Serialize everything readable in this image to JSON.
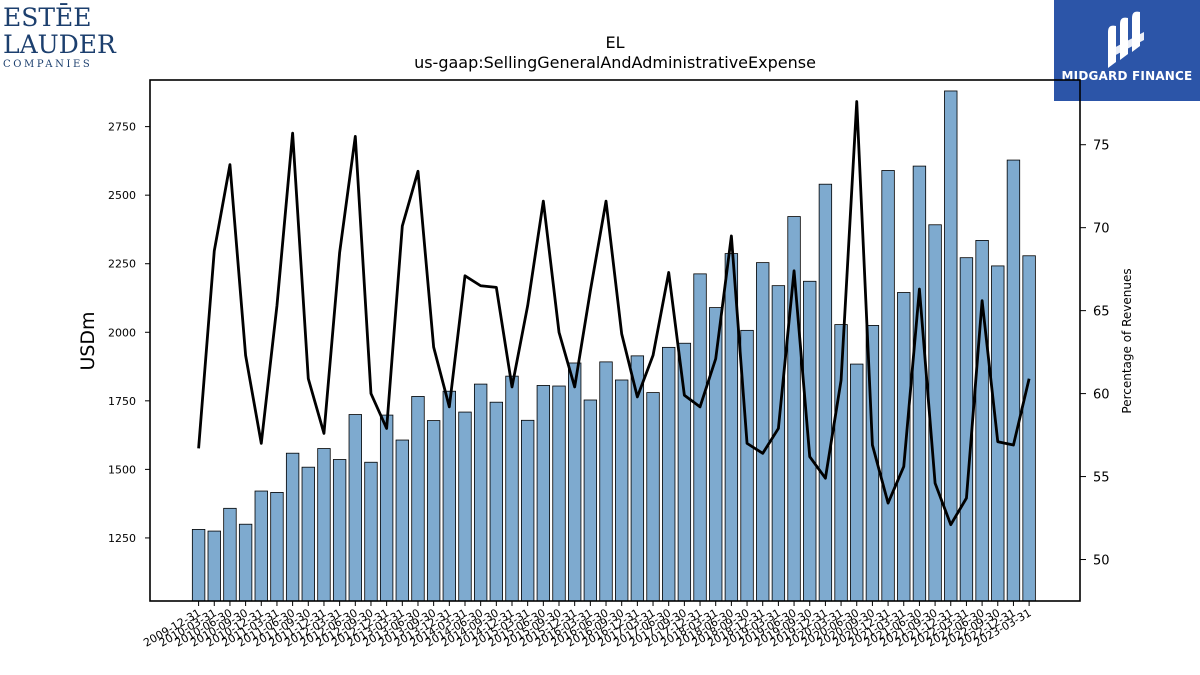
{
  "logos": {
    "left_line1": "ESTĒE",
    "left_line2": "LAUDER",
    "left_line3": "COMPANIES",
    "right_brand": "MIDGARD FINANCE",
    "right_bg": "#2c55a8"
  },
  "chart_data": {
    "type": "bar",
    "title": "EL",
    "subtitle": "us-gaap:SellingGeneralAndAdministrativeExpense",
    "ylabel": "USDm",
    "y2label": "Percentage of Revenues",
    "ylim": [
      1020,
      2920
    ],
    "y2lim": [
      47.5,
      78.9
    ],
    "yticks": [
      1250,
      1500,
      1750,
      2000,
      2250,
      2500,
      2750
    ],
    "y2ticks": [
      50,
      55,
      60,
      65,
      70,
      75
    ],
    "bar_color": "#7eaacf",
    "line_color": "#000000",
    "categories": [
      "2009-12-31",
      "2010-03-31",
      "2010-06-30",
      "2010-09-30",
      "2010-12-31",
      "2011-03-31",
      "2011-06-30",
      "2011-09-30",
      "2011-12-31",
      "2012-03-31",
      "2012-06-30",
      "2012-09-30",
      "2012-12-31",
      "2013-03-31",
      "2013-06-30",
      "2013-09-30",
      "2013-12-31",
      "2014-03-31",
      "2014-06-30",
      "2014-09-30",
      "2014-12-31",
      "2015-03-31",
      "2015-06-30",
      "2015-09-30",
      "2015-12-31",
      "2016-03-31",
      "2016-06-30",
      "2016-09-30",
      "2016-12-31",
      "2017-03-31",
      "2017-06-30",
      "2017-09-30",
      "2017-12-31",
      "2018-03-31",
      "2018-06-30",
      "2018-09-30",
      "2018-12-31",
      "2019-03-31",
      "2019-06-30",
      "2019-09-30",
      "2019-12-31",
      "2020-03-31",
      "2020-06-30",
      "2020-09-30",
      "2020-12-31",
      "2021-03-31",
      "2021-06-30",
      "2021-09-30",
      "2021-12-31",
      "2022-03-31",
      "2022-06-30",
      "2022-09-30",
      "2022-12-31",
      "2023-03-31"
    ],
    "series": [
      {
        "type": "bar",
        "axis": "left",
        "values": [
          1281,
          1275,
          1358,
          1300,
          1421,
          1416,
          1559,
          1508,
          1576,
          1536,
          1700,
          1526,
          1698,
          1607,
          1766,
          1678,
          1785,
          1709,
          1811,
          1745,
          1840,
          1679,
          1806,
          1804,
          1888,
          1753,
          1892,
          1826,
          1914,
          1780,
          1945,
          1960,
          2213,
          2090,
          2287,
          2007,
          2254,
          2170,
          2422,
          2186,
          2540,
          2028,
          1884,
          2025,
          2590,
          2145,
          2606,
          2392,
          2880,
          2272,
          2335,
          2242,
          2628,
          2279
        ]
      },
      {
        "type": "line",
        "axis": "right",
        "values": [
          56.7,
          68.6,
          73.8,
          62.3,
          57.0,
          65.3,
          75.7,
          60.9,
          57.6,
          68.5,
          75.5,
          60.0,
          57.9,
          70.1,
          73.4,
          62.8,
          59.2,
          67.1,
          66.5,
          66.4,
          60.4,
          65.3,
          71.6,
          63.7,
          60.4,
          66.2,
          71.6,
          63.6,
          59.8,
          62.3,
          67.3,
          59.9,
          59.2,
          62.1,
          69.5,
          57.0,
          56.4,
          57.9,
          67.4,
          56.2,
          54.9,
          60.8,
          77.6,
          56.9,
          53.4,
          55.6,
          66.3,
          54.6,
          52.1,
          53.7,
          65.6,
          57.1,
          56.9,
          60.9
        ]
      }
    ]
  }
}
